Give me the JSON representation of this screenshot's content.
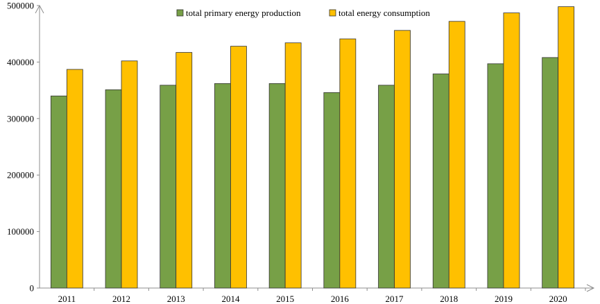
{
  "chart_data": {
    "type": "bar",
    "title": "",
    "xlabel": "",
    "ylabel": "",
    "categories": [
      "2011",
      "2012",
      "2013",
      "2014",
      "2015",
      "2016",
      "2017",
      "2018",
      "2019",
      "2020"
    ],
    "series": [
      {
        "name": "total primary energy production",
        "color": "#77A047",
        "values": [
          340000,
          351000,
          359000,
          362000,
          362000,
          346000,
          359000,
          379000,
          397000,
          408000
        ]
      },
      {
        "name": "total energy consumption",
        "color": "#FFC000",
        "values": [
          387000,
          402000,
          417000,
          428000,
          434000,
          441000,
          456000,
          472000,
          487000,
          498000
        ]
      }
    ],
    "ylim": [
      0,
      500000
    ],
    "yticks": [
      0,
      100000,
      200000,
      300000,
      400000,
      500000
    ],
    "ytick_labels": [
      "0",
      "100000",
      "200000",
      "300000",
      "400000",
      "500000"
    ],
    "grid": false,
    "legend_position": "top-center"
  }
}
